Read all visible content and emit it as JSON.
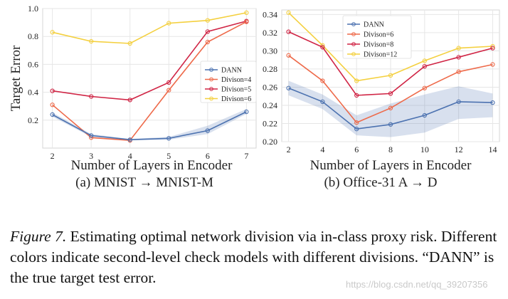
{
  "chart_data": [
    {
      "type": "line",
      "ylabel": "Target Error",
      "xlabel": "Number of Layers in Encoder",
      "subtitle": "(a) MNIST → MNIST-M",
      "x": [
        2,
        3,
        4,
        5,
        6,
        7
      ],
      "xticks": [
        "2",
        "3",
        "4",
        "5",
        "6",
        "7"
      ],
      "xlim": [
        1.75,
        7.25
      ],
      "ylim": [
        0,
        1.0
      ],
      "yticks": [
        "0.2",
        "0.4",
        "0.6",
        "0.8",
        "1.0"
      ],
      "grid": true,
      "legend_position": "center-right",
      "series": [
        {
          "name": "DANN",
          "color": "#4c72b0",
          "values": [
            0.24,
            0.09,
            0.06,
            0.07,
            0.125,
            0.26
          ],
          "band_upper": [
            0.255,
            0.1,
            0.065,
            0.08,
            0.16,
            0.28
          ],
          "band_lower": [
            0.225,
            0.08,
            0.055,
            0.06,
            0.1,
            0.245
          ]
        },
        {
          "name": "Divison=4",
          "color": "#ee6a4a",
          "values": [
            0.31,
            0.075,
            0.055,
            0.415,
            0.76,
            0.905
          ]
        },
        {
          "name": "Divison=5",
          "color": "#d02545",
          "values": [
            0.41,
            0.37,
            0.345,
            0.47,
            0.835,
            0.91
          ]
        },
        {
          "name": "Divison=6",
          "color": "#f4d03f",
          "values": [
            0.83,
            0.765,
            0.75,
            0.895,
            0.915,
            0.97
          ]
        }
      ]
    },
    {
      "type": "line",
      "xlabel": "Number of Layers in Encoder",
      "subtitle": "(b) Office-31 A → D",
      "x": [
        2,
        4,
        6,
        8,
        10,
        12,
        14
      ],
      "xticks": [
        "2",
        "4",
        "6",
        "8",
        "10",
        "12",
        "14"
      ],
      "xlim": [
        1.6,
        14.4
      ],
      "ylim": [
        0.2,
        0.345
      ],
      "yticks": [
        "0.20",
        "0.22",
        "0.24",
        "0.26",
        "0.28",
        "0.30",
        "0.32",
        "0.34"
      ],
      "grid": true,
      "legend_position": "top-left",
      "series": [
        {
          "name": "DANN",
          "color": "#4c72b0",
          "values": [
            0.259,
            0.244,
            0.214,
            0.219,
            0.229,
            0.244,
            0.243
          ],
          "band_upper": [
            0.267,
            0.252,
            0.229,
            0.242,
            0.252,
            0.261,
            0.253
          ],
          "band_lower": [
            0.251,
            0.236,
            0.207,
            0.205,
            0.21,
            0.225,
            0.227
          ]
        },
        {
          "name": "Divison=6",
          "color": "#ee6a4a",
          "values": [
            0.295,
            0.267,
            0.221,
            0.237,
            0.259,
            0.277,
            0.285
          ]
        },
        {
          "name": "Divison=8",
          "color": "#d02545",
          "values": [
            0.321,
            0.304,
            0.251,
            0.253,
            0.283,
            0.293,
            0.303
          ]
        },
        {
          "name": "Divison=12",
          "color": "#f4d03f",
          "values": [
            0.342,
            0.306,
            0.267,
            0.273,
            0.289,
            0.303,
            0.305
          ]
        }
      ]
    }
  ],
  "caption": {
    "label": "Figure 7.",
    "text": " Estimating optimal network division via in-class proxy risk.  Different colors indicate second-level check models with different divisions. “DANN” is the true target test error."
  },
  "watermark": "https://blog.csdn.net/qq_39207356"
}
